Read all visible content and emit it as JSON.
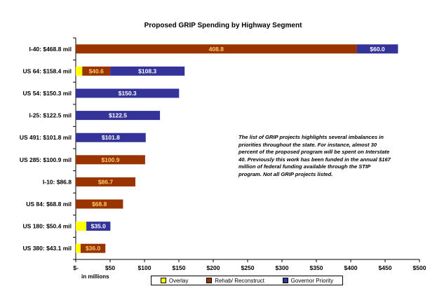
{
  "chart_data": {
    "type": "bar",
    "orientation": "horizontal",
    "stacked": true,
    "title": "Proposed GRIP Spending by Highway Segment",
    "xlabel": "in millions",
    "ylabel": "",
    "xlim": [
      0,
      500
    ],
    "x_ticks": [
      0,
      50,
      100,
      150,
      200,
      250,
      300,
      350,
      400,
      450,
      500
    ],
    "x_tick_labels": [
      "$-",
      "$50",
      "$100",
      "$150",
      "$200",
      "$250",
      "$300",
      "$350",
      "$400",
      "$450",
      "$500"
    ],
    "grid": false,
    "legend_position": "bottom",
    "categories": [
      "I-40: $468.8 mil",
      "US 64: $158.4 mil",
      "US 54: $150.3 mil",
      "I-25: $122.5 mil",
      "US 491: $101.8 mil",
      "US 285: $100.9 mil",
      "I-10: $86.8",
      "US 84: $68.8 mil",
      "US 180: $50.4 mil",
      "US 380: $43.1 mil"
    ],
    "series": [
      {
        "name": "Overlay",
        "color": "#ffff00",
        "label_color": "#000000",
        "values": [
          0,
          9.5,
          0,
          0,
          0,
          0,
          0,
          0,
          15.4,
          7.1
        ],
        "labels": [
          "",
          "",
          "",
          "",
          "",
          "",
          "",
          "",
          "",
          ""
        ]
      },
      {
        "name": "Rehab/ Reconstruct",
        "color": "#993300",
        "label_color": "#ffcc66",
        "values": [
          408.8,
          40.6,
          0,
          0,
          0,
          100.9,
          86.7,
          68.8,
          0,
          36.0
        ],
        "labels": [
          "408.8",
          "$40.6",
          "",
          "",
          "",
          "$100.9",
          "$86.7",
          "$68.8",
          "",
          "$36.0"
        ]
      },
      {
        "name": "Governor Priority",
        "color": "#333399",
        "label_color": "#ffffff",
        "values": [
          60.0,
          108.3,
          150.3,
          122.5,
          101.8,
          0,
          0,
          0,
          35.0,
          0
        ],
        "labels": [
          "$60.0",
          "$108.3",
          "$150.3",
          "$122.5",
          "$101.8",
          "",
          "",
          "",
          "$35.0",
          ""
        ]
      }
    ],
    "annotation": "The list of GRIP projects highlights several imbalances in priorities throughout the state. For instance, almost 30 percent of the proposed program will be spent on Interstate 40. Previously this work has been funded in the annual $167 million of federal funding available through the STIP program. Not all GRIP projects listed."
  }
}
